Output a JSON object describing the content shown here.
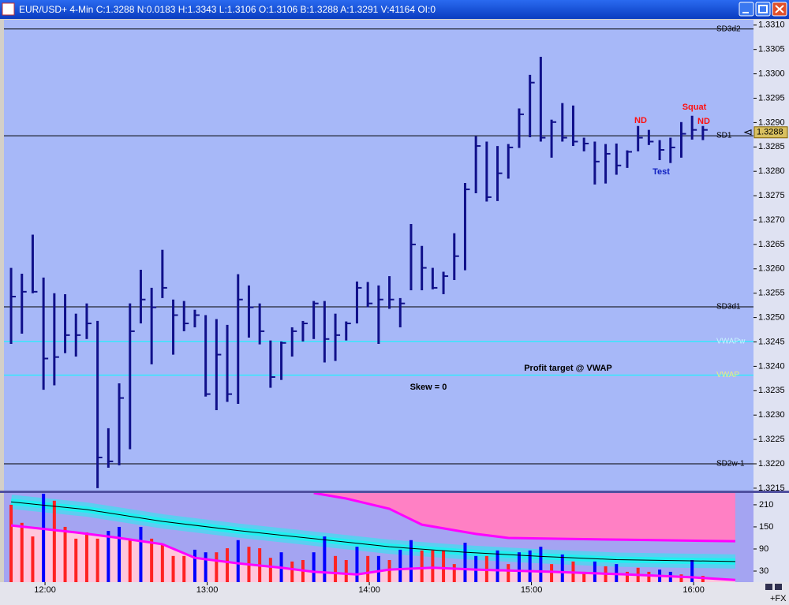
{
  "chart_data": [
    {
      "type": "ohlc",
      "title": "EUR/USD+ 4-Min C:1.3288 N:0.0183 H:1.3343 L:1.3106 O:1.3106 B:1.3288 A:1.3291 V:41164 OI:0",
      "color": "#10108a",
      "background": "#a7b8f8",
      "xlim": [
        -0.66,
        68.68
      ],
      "ylim": [
        1.32145,
        1.33111
      ],
      "yticks": [
        1.3215,
        {
          "value": 1.322,
          "label": "1.3220"
        },
        1.3225,
        {
          "value": 1.323,
          "label": "1.3230"
        },
        1.3235,
        {
          "value": 1.324,
          "label": "1.3240"
        },
        1.3245,
        {
          "value": 1.325,
          "label": "1.3250"
        },
        1.3255,
        {
          "value": 1.326,
          "label": "1.3260"
        },
        1.3265,
        {
          "value": 1.327,
          "label": "1.3270"
        },
        1.3275,
        {
          "value": 1.328,
          "label": "1.3280"
        },
        1.3285,
        {
          "value": 1.329,
          "label": "1.3290"
        },
        1.3295,
        {
          "value": 1.33,
          "label": "1.3300"
        },
        1.3305,
        {
          "value": 1.331,
          "label": "1.3310"
        }
      ],
      "high": [
        1.32602,
        1.3259,
        1.3267,
        1.32582,
        1.3255,
        1.32548,
        1.32508,
        1.32529,
        1.32493,
        1.32273,
        1.32365,
        1.32529,
        1.32598,
        1.32561,
        1.32639,
        1.32537,
        1.32534,
        1.32516,
        1.32505,
        1.32497,
        1.32485,
        1.32589,
        1.32566,
        1.32529,
        1.32453,
        1.32451,
        1.3248,
        1.32493,
        1.32534,
        1.32534,
        1.32508,
        1.32492,
        1.32574,
        1.32573,
        1.32566,
        1.32585,
        1.3254,
        1.32692,
        1.32647,
        1.32602,
        1.32594,
        1.32673,
        1.32776,
        1.32872,
        1.32861,
        1.32852,
        1.32856,
        1.32929,
        1.32998,
        1.33035,
        1.32906,
        1.3294,
        1.32935,
        1.32869,
        1.32861,
        1.32856,
        1.32857,
        1.32843,
        1.32893,
        1.32885,
        1.32864,
        1.32869,
        1.32901,
        1.32914,
        1.32893
      ],
      "low": [
        1.32446,
        1.32467,
        1.3255,
        1.32352,
        1.32361,
        1.32427,
        1.3242,
        1.32456,
        1.3215,
        1.32192,
        1.32197,
        1.3223,
        1.32488,
        1.32404,
        1.3254,
        1.32424,
        1.32472,
        1.3248,
        1.32338,
        1.3231,
        1.32327,
        1.32323,
        1.32459,
        1.32445,
        1.32356,
        1.32372,
        1.3242,
        1.32451,
        1.32456,
        1.32408,
        1.32411,
        1.32453,
        1.32488,
        1.32521,
        1.32446,
        1.32518,
        1.3248,
        1.32556,
        1.32556,
        1.32558,
        1.32548,
        1.32577,
        1.32597,
        1.32755,
        1.32738,
        1.32739,
        1.32785,
        1.32848,
        1.3287,
        1.32861,
        1.32828,
        1.32861,
        1.32852,
        1.32841,
        1.32773,
        1.32775,
        1.32793,
        1.32807,
        1.32841,
        1.32854,
        1.32823,
        1.32817,
        1.32828,
        1.32865,
        1.32864
      ],
      "close": [
        1.32543,
        1.32553,
        1.32553,
        1.32416,
        1.32419,
        1.32464,
        1.32464,
        1.32488,
        1.32213,
        1.32205,
        1.32335,
        1.32472,
        1.32537,
        1.32521,
        1.32561,
        1.32505,
        1.32488,
        1.32505,
        1.32343,
        1.32424,
        1.32343,
        1.32537,
        1.32521,
        1.32472,
        1.32378,
        1.32448,
        1.32472,
        1.32488,
        1.32529,
        1.32456,
        1.32464,
        1.32488,
        1.32561,
        1.32529,
        1.32537,
        1.32537,
        1.32529,
        1.3265,
        1.32602,
        1.32561,
        1.32585,
        1.32626,
        1.32763,
        1.32852,
        1.32747,
        1.32796,
        1.32849,
        1.32917,
        1.32982,
        1.32869,
        1.32901,
        1.32869,
        1.32861,
        1.32857,
        1.3282,
        1.32836,
        1.32812,
        1.3284,
        1.32869,
        1.32861,
        1.32844,
        1.32849,
        1.32877,
        1.32885,
        1.32885
      ],
      "last_price": 1.3288,
      "levels": [
        {
          "label": "SD3d2",
          "value": 1.33092,
          "color": "#000000",
          "label_color": "#000000"
        },
        {
          "label": "SD1",
          "value": 1.32873,
          "color": "#000000",
          "label_color": "#000000"
        },
        {
          "label": "SD3d1",
          "value": 1.32522,
          "color": "#000000",
          "label_color": "#000000"
        },
        {
          "label": "VWAPw",
          "value": 1.32451,
          "color": "#00ffff",
          "label_color": "#c8f4ff"
        },
        {
          "label": "VWAP",
          "value": 1.32382,
          "color": "#00ffff",
          "label_color": "#e8f080"
        },
        {
          "label": "SD2w-1",
          "value": 1.322,
          "color": "#000000",
          "label_color": "#000000"
        }
      ],
      "annotations": [
        {
          "text": "ND",
          "color": "#ff1010"
        },
        {
          "text": "Squat",
          "color": "#ff1010"
        },
        {
          "text": "ND",
          "color": "#ff1010"
        },
        {
          "text": "Test",
          "color": "#1020c0"
        },
        {
          "text": "Profit target @ VWAP",
          "color": "#000000"
        },
        {
          "text": "Skew = 0",
          "color": "#000000"
        }
      ]
    },
    {
      "type": "bar",
      "background": "#a4a4f2",
      "xlim": [
        -0.66,
        68.68
      ],
      "ylim": [
        0,
        242
      ],
      "yticks": [
        30,
        90,
        150,
        210
      ],
      "xticks": [
        {
          "value": 3.14,
          "label": "12:00"
        },
        {
          "value": 18.14,
          "label": "13:00"
        },
        {
          "value": 33.14,
          "label": "14:00"
        },
        {
          "value": 48.14,
          "label": "15:00"
        },
        {
          "value": 63.14,
          "label": "16:00"
        }
      ],
      "values": [
        210,
        161,
        124,
        240,
        221,
        150,
        118,
        135,
        118,
        139,
        150,
        118,
        150,
        118,
        103,
        71,
        71,
        88,
        81,
        81,
        92,
        114,
        96,
        92,
        66,
        81,
        56,
        60,
        81,
        124,
        71,
        60,
        96,
        71,
        71,
        60,
        88,
        114,
        86,
        86,
        86,
        49,
        107,
        71,
        71,
        86,
        49,
        81,
        86,
        96,
        49,
        75,
        56,
        28,
        56,
        43,
        49,
        28,
        39,
        28,
        34,
        28,
        21,
        60,
        17
      ],
      "colors": [
        "#f22",
        "#f22",
        "#f22",
        "#00f",
        "#f22",
        "#f22",
        "#f22",
        "#f22",
        "#f22",
        "#00f",
        "#00f",
        "#f22",
        "#00f",
        "#f22",
        "#f22",
        "#f22",
        "#f22",
        "#00f",
        "#00f",
        "#f22",
        "#f22",
        "#00f",
        "#f22",
        "#f22",
        "#f22",
        "#00f",
        "#f22",
        "#f22",
        "#00f",
        "#00f",
        "#f22",
        "#f22",
        "#00f",
        "#f22",
        "#00f",
        "#f22",
        "#00f",
        "#00f",
        "#f22",
        "#f22",
        "#f22",
        "#f22",
        "#00f",
        "#00f",
        "#f22",
        "#00f",
        "#f22",
        "#00f",
        "#00f",
        "#00f",
        "#f22",
        "#00f",
        "#f22",
        "#f22",
        "#00f",
        "#f22",
        "#00f",
        "#f22",
        "#f22",
        "#f22",
        "#00f",
        "#00f",
        "#f22",
        "#00f",
        "#f22"
      ],
      "indicators": [
        {
          "role": "upper",
          "color": "#ff00ff",
          "fill": "#ff80c4",
          "x": [
            28,
            31,
            35,
            38,
            43,
            46,
            50,
            57,
            67
          ],
          "values": [
            242,
            227,
            199,
            156,
            131,
            120,
            118,
            115,
            111
          ]
        },
        {
          "role": "lower",
          "color": "#ff00ff",
          "fill": "#ffc6dc",
          "x": [
            0,
            6,
            10,
            14,
            17,
            21,
            25,
            28,
            32,
            35,
            39,
            43,
            50,
            57,
            63,
            67
          ],
          "values": [
            154,
            135,
            120,
            103,
            66,
            51,
            39,
            28,
            21,
            34,
            39,
            34,
            28,
            21,
            13,
            6
          ]
        },
        {
          "role": "average",
          "color": "#000000",
          "band": "#20f0f0",
          "x": [
            0,
            7,
            14,
            21,
            28,
            35,
            42,
            49,
            56,
            67
          ],
          "values": [
            218,
            197,
            165,
            140,
            118,
            96,
            81,
            70,
            61,
            56
          ]
        }
      ],
      "corner_label": "+FX"
    }
  ]
}
